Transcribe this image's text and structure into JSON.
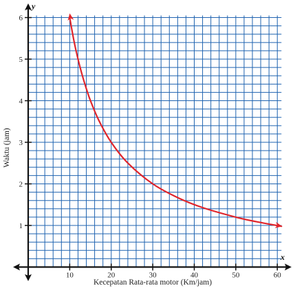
{
  "chart_data": {
    "type": "line",
    "title": "",
    "xlabel": "Kecepatan Rata-rata motor (Km/jam)",
    "ylabel": "Waktu (jam)",
    "x_axis_var": "x",
    "y_axis_var": "y",
    "xlim": [
      0,
      61
    ],
    "ylim": [
      0,
      6.05
    ],
    "x_ticks": [
      10,
      20,
      30,
      40,
      50,
      60
    ],
    "y_ticks": [
      1,
      2,
      3,
      4,
      5,
      6
    ],
    "x_tick_labels": [
      "10",
      "20",
      "30",
      "40",
      "50",
      "60"
    ],
    "y_tick_labels": [
      "1",
      "2",
      "3",
      "4",
      "5",
      "6"
    ],
    "grid": true,
    "grid_minor_step_x": 2,
    "grid_minor_step_y": 0.2,
    "legend": "none",
    "arrows_on_curve_ends": true,
    "series": [
      {
        "color": "#e0252b",
        "x": [
          10,
          11,
          12,
          13,
          14,
          15,
          17,
          20,
          24,
          30,
          36,
          42,
          50,
          55,
          61
        ],
        "y": [
          6,
          5.45,
          5,
          4.62,
          4.29,
          4,
          3.53,
          3,
          2.5,
          2,
          1.67,
          1.43,
          1.2,
          1.09,
          0.98
        ]
      }
    ],
    "colors": {
      "grid": "#1f63b0",
      "axis": "#111111",
      "curve": "#e0252b"
    }
  }
}
